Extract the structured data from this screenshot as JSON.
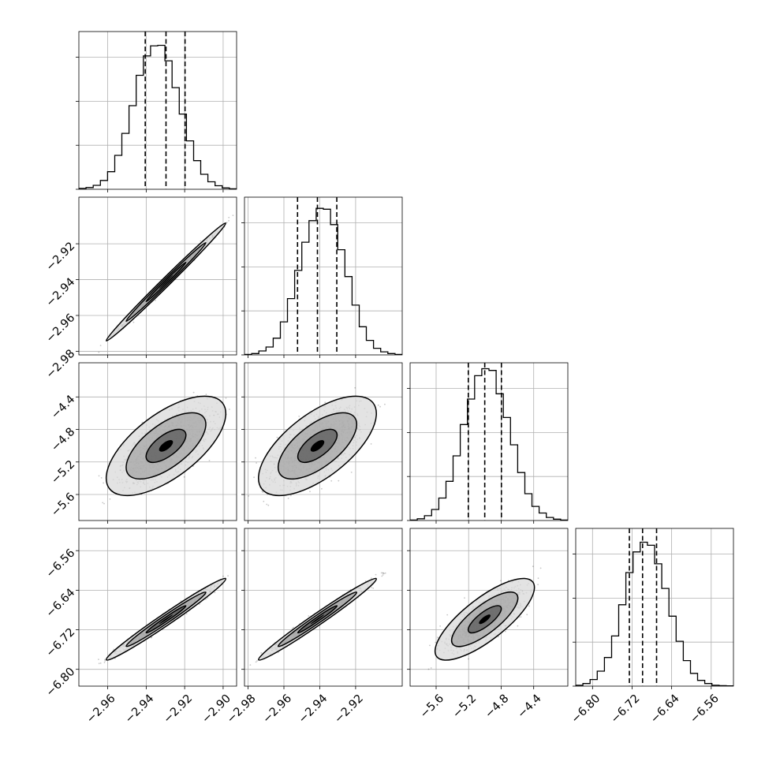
{
  "chart_data": {
    "type": "corner",
    "title": "",
    "parameters": [
      {
        "label": "",
        "range": [
          -2.975,
          -2.893
        ],
        "ticks": [
          -2.96,
          -2.94,
          -2.92,
          -2.9
        ],
        "tick_labels": [
          "−2.96",
          "−2.94",
          "−2.92",
          "−2.90"
        ],
        "quantiles": [
          -2.9405,
          -2.9297,
          -2.9198
        ],
        "hist_max": 3200,
        "hist": [
          20,
          40,
          90,
          200,
          400,
          770,
          1270,
          1900,
          2590,
          3030,
          3260,
          3270,
          2920,
          2310,
          1710,
          1100,
          650,
          340,
          170,
          80,
          30,
          10
        ]
      },
      {
        "label": "",
        "range": [
          -2.982,
          -2.894
        ],
        "ticks": [
          -2.98,
          -2.96,
          -2.94,
          -2.92
        ],
        "tick_labels": [
          "−2.98",
          "−2.96",
          "−2.94",
          "−2.92"
        ],
        "quantiles": [
          -2.9524,
          -2.9413,
          -2.9305
        ],
        "hist_max": 3200,
        "hist": [
          10,
          30,
          90,
          180,
          380,
          750,
          1280,
          1920,
          2560,
          3050,
          3330,
          3310,
          2960,
          2390,
          1780,
          1130,
          640,
          330,
          150,
          70,
          30,
          10
        ]
      },
      {
        "label": "",
        "range": [
          -5.92,
          -3.98
        ],
        "ticks": [
          -5.6,
          -5.2,
          -4.8,
          -4.4
        ],
        "tick_labels": [
          "−5.6",
          "−5.2",
          "−4.8",
          "−4.4"
        ],
        "quantiles": [
          -5.204,
          -5.002,
          -4.797
        ],
        "hist_max": 3200,
        "hist": [
          10,
          40,
          110,
          250,
          510,
          890,
          1470,
          2180,
          2760,
          3290,
          3450,
          3410,
          2880,
          2340,
          1720,
          1090,
          610,
          320,
          170,
          70,
          30,
          10
        ]
      },
      {
        "label": "",
        "range": [
          -6.834,
          -6.515
        ],
        "ticks": [
          -6.8,
          -6.72,
          -6.64,
          -6.56
        ],
        "tick_labels": [
          "−6.80",
          "−6.72",
          "−6.64",
          "−6.56"
        ],
        "quantiles": [
          -6.7255,
          -6.6988,
          -6.6705
        ],
        "hist_max": 3200,
        "hist": [
          20,
          60,
          150,
          340,
          650,
          1140,
          1850,
          2580,
          3050,
          3270,
          3200,
          2780,
          2220,
          1590,
          1020,
          580,
          290,
          130,
          60,
          20,
          10,
          5
        ]
      }
    ],
    "correlations": {
      "1-0": 0.995,
      "2-0": 0.65,
      "2-1": 0.65,
      "3-0": 0.985,
      "3-1": 0.985,
      "3-2": 0.78
    },
    "levels": [
      0.393,
      0.865,
      0.989
    ],
    "grid": true,
    "quantile_line_style": "dashed"
  }
}
